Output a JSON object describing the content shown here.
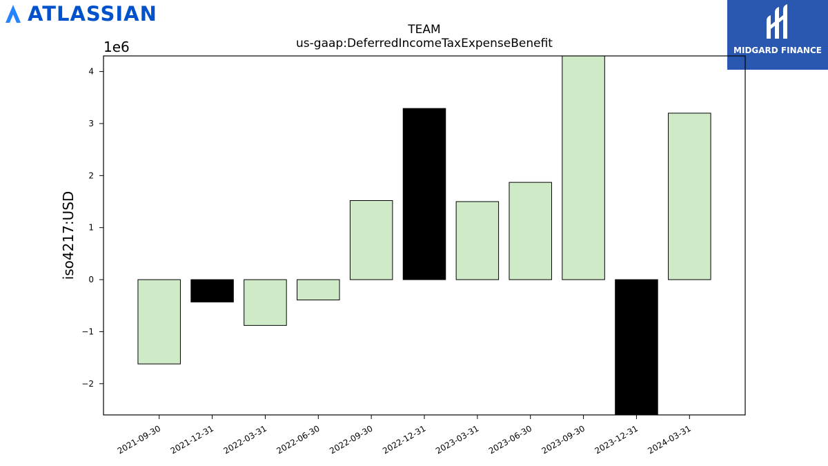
{
  "logos": {
    "left": {
      "text": "ATLASSIAN",
      "color": "#0052cc"
    },
    "right": {
      "text": "MIDGARD FINANCE",
      "background": "#2a57b0"
    }
  },
  "chart_data": {
    "type": "bar",
    "title": "TEAM",
    "subtitle": "us-gaap:DeferredIncomeTaxExpenseBenefit",
    "ylabel": "iso4217:USD",
    "xlabel": "",
    "y_offset_label": "1e6",
    "ylim": [
      -2.6,
      4.3
    ],
    "y_ticks": [
      -2,
      -1,
      0,
      1,
      2,
      3,
      4
    ],
    "y_tick_labels": [
      "−2",
      "−1",
      "0",
      "1",
      "2",
      "3",
      "4"
    ],
    "categories": [
      "2021-09-30",
      "2021-12-31",
      "2022-03-31",
      "2022-06-30",
      "2022-09-30",
      "2022-12-31",
      "2023-03-31",
      "2023-06-30",
      "2023-09-30",
      "2023-12-31",
      "2024-03-31"
    ],
    "values": [
      -1.62,
      -0.43,
      -0.88,
      -0.39,
      1.52,
      3.29,
      1.5,
      1.87,
      4.3,
      -2.6,
      3.2
    ],
    "bar_colors": [
      "#cfeac7",
      "#000000",
      "#cfeac7",
      "#cfeac7",
      "#cfeac7",
      "#000000",
      "#cfeac7",
      "#cfeac7",
      "#cfeac7",
      "#000000",
      "#cfeac7"
    ],
    "grid": false,
    "legend": "none"
  }
}
